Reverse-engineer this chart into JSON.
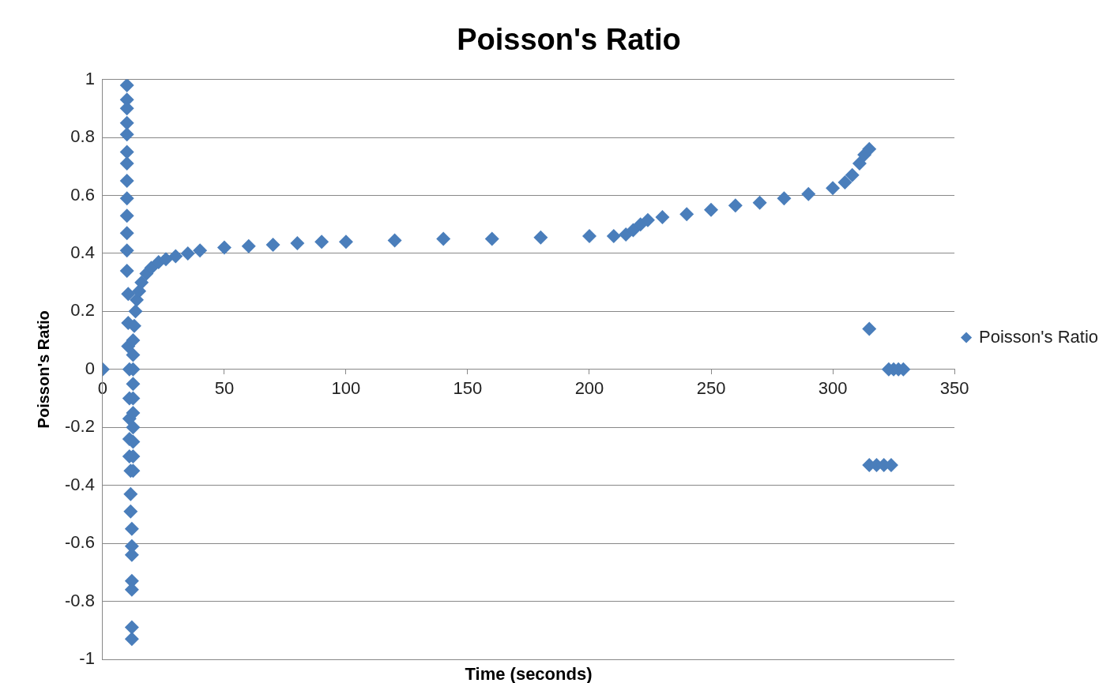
{
  "chart_data": {
    "type": "scatter",
    "title": "Poisson's Ratio",
    "xlabel": "Time (seconds)",
    "ylabel": "Poisson's Ratio",
    "xlim": [
      0,
      350
    ],
    "xticks": [
      0,
      50,
      100,
      150,
      200,
      250,
      300,
      350
    ],
    "ylim": [
      -1,
      1
    ],
    "yticks": [
      -1,
      -0.8,
      -0.6,
      -0.4,
      -0.2,
      0,
      0.2,
      0.4,
      0.6,
      0.8,
      1
    ],
    "grid": "y",
    "legend": "right",
    "marker": "diamond",
    "series": [
      {
        "name": "Poisson's Ratio",
        "color": "#4a7ebb",
        "x": [
          0,
          10,
          10,
          10,
          10,
          10,
          10,
          10,
          10,
          10,
          10,
          10,
          10,
          10,
          10.5,
          10.5,
          10.5,
          11,
          11,
          11,
          11,
          11,
          11.5,
          11.5,
          11.5,
          12,
          12,
          12,
          12,
          12,
          12,
          12,
          12.5,
          12.5,
          12.5,
          12.5,
          12.5,
          12.5,
          12.5,
          12.5,
          12.5,
          12.5,
          13,
          13.5,
          14,
          15,
          16,
          18,
          20,
          23,
          26,
          30,
          35,
          40,
          50,
          60,
          70,
          80,
          90,
          100,
          120,
          140,
          160,
          180,
          200,
          210,
          215,
          218,
          221,
          224,
          230,
          240,
          250,
          260,
          270,
          280,
          290,
          300,
          305,
          308,
          311,
          313,
          315,
          315,
          323,
          325,
          327,
          329,
          315,
          318,
          321,
          324
        ],
        "values": [
          0,
          0.98,
          0.93,
          0.9,
          0.85,
          0.81,
          0.75,
          0.71,
          0.65,
          0.59,
          0.53,
          0.47,
          0.41,
          0.34,
          0.26,
          0.16,
          0.08,
          0,
          -0.1,
          -0.17,
          -0.24,
          -0.3,
          -0.35,
          -0.43,
          -0.49,
          -0.55,
          -0.61,
          -0.64,
          -0.73,
          -0.76,
          -0.89,
          -0.93,
          -0.35,
          -0.3,
          -0.25,
          -0.2,
          -0.15,
          -0.1,
          -0.05,
          0,
          0.05,
          0.1,
          0.15,
          0.2,
          0.24,
          0.27,
          0.3,
          0.33,
          0.35,
          0.37,
          0.38,
          0.39,
          0.4,
          0.41,
          0.42,
          0.425,
          0.43,
          0.435,
          0.44,
          0.44,
          0.445,
          0.45,
          0.45,
          0.455,
          0.46,
          0.46,
          0.465,
          0.48,
          0.5,
          0.515,
          0.525,
          0.535,
          0.55,
          0.565,
          0.575,
          0.59,
          0.605,
          0.625,
          0.645,
          0.67,
          0.71,
          0.74,
          0.76,
          0.14,
          0,
          0,
          0,
          0,
          -0.33,
          -0.33,
          -0.33,
          -0.33
        ]
      }
    ]
  }
}
